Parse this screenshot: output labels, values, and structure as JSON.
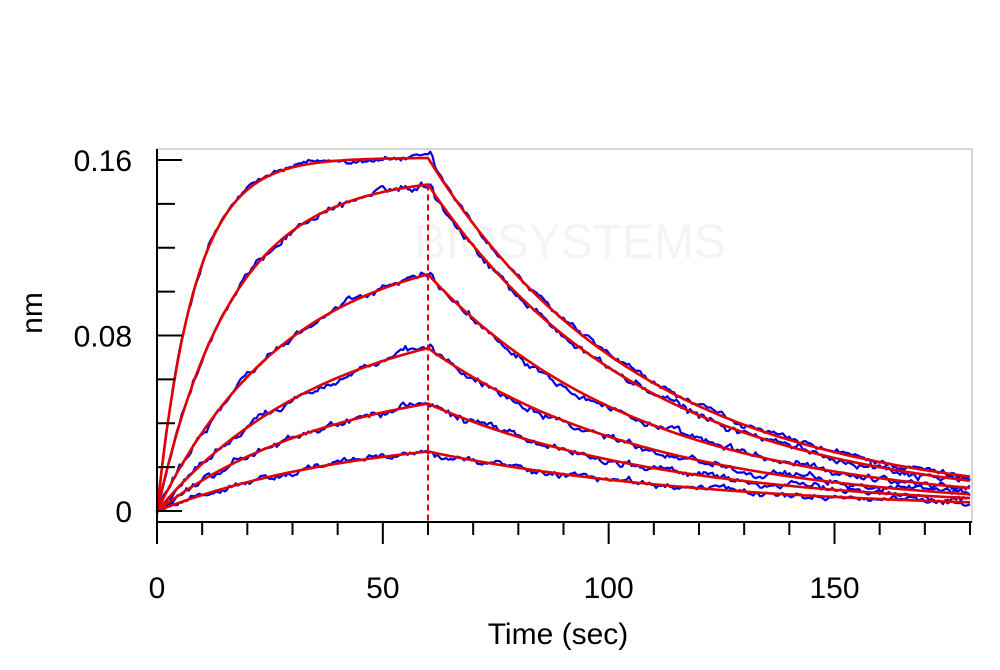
{
  "chart_data": {
    "type": "line",
    "title": "",
    "xlabel": "Time (sec)",
    "ylabel": "nm",
    "xlim": [
      0,
      180
    ],
    "ylim": [
      -0.005,
      0.165
    ],
    "x_ticks": [
      0,
      50,
      100,
      150
    ],
    "x_tick_labels": [
      "0",
      "50",
      "100",
      "150"
    ],
    "x_minor_step": 10,
    "y_ticks": [
      0,
      0.08,
      0.16
    ],
    "y_tick_labels": [
      "0",
      "0.08",
      "0.16"
    ],
    "y_minor_step": 0.02,
    "grid": false,
    "watermark": "BIOSYSTEMS",
    "injection_line": {
      "x": 60,
      "color": "#e00000",
      "style": "dashed"
    },
    "measured_color": "#0000e6",
    "fit_color": "#e00000",
    "association_end": 60,
    "series": [
      {
        "plateau": 0.161,
        "ka": 0.12,
        "kd": 0.021,
        "baseline": 0.003,
        "noise": 0.0012
      },
      {
        "plateau": 0.153,
        "ka": 0.06,
        "kd": 0.021,
        "baseline": 0.002,
        "noise": 0.0015
      },
      {
        "plateau": 0.124,
        "ka": 0.034,
        "kd": 0.021,
        "baseline": 0.002,
        "noise": 0.0015
      },
      {
        "plateau": 0.094,
        "ka": 0.026,
        "kd": 0.02,
        "baseline": 0.001,
        "noise": 0.0015
      },
      {
        "plateau": 0.063,
        "ka": 0.025,
        "kd": 0.019,
        "baseline": 0.001,
        "noise": 0.0015
      },
      {
        "plateau": 0.037,
        "ka": 0.022,
        "kd": 0.016,
        "baseline": 0.0,
        "noise": 0.0013
      }
    ]
  }
}
